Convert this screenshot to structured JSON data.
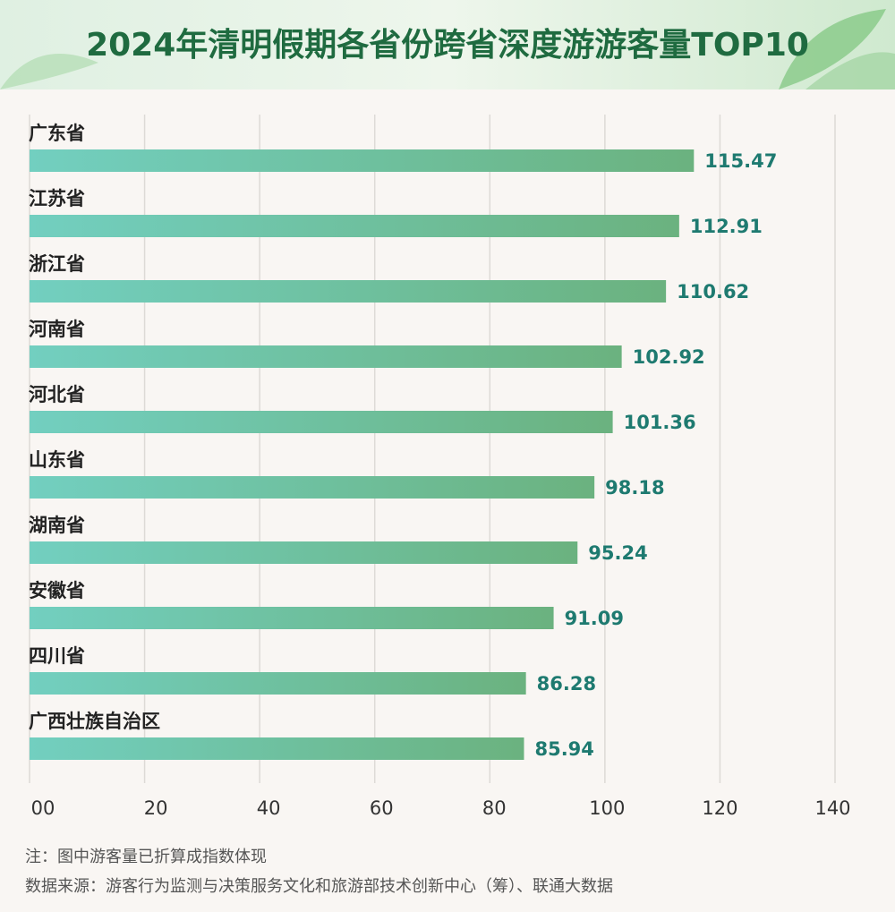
{
  "chart_data": {
    "type": "hbar",
    "title": "2024年清明假期各省份跨省深度游游客量TOP10",
    "categories": [
      "广东省",
      "江苏省",
      "浙江省",
      "河南省",
      "河北省",
      "山东省",
      "湖南省",
      "安徽省",
      "四川省",
      "广西壮族自治区"
    ],
    "values": [
      115.47,
      112.91,
      110.62,
      102.92,
      101.36,
      98.18,
      95.24,
      91.09,
      86.28,
      85.94
    ],
    "color": [
      "#72cfc0",
      "#6bb27f"
    ],
    "xlim": [
      0,
      140
    ],
    "xticks": [
      {
        "value": 0,
        "label": "00"
      },
      20,
      40,
      60,
      80,
      100,
      120,
      140
    ],
    "grid": true,
    "notes": [
      "注：图中游客量已折算成指数体现",
      "数据来源：游客行为监测与决策服务文化和旅游部技术创新中心（筹）、联通大数据"
    ]
  }
}
